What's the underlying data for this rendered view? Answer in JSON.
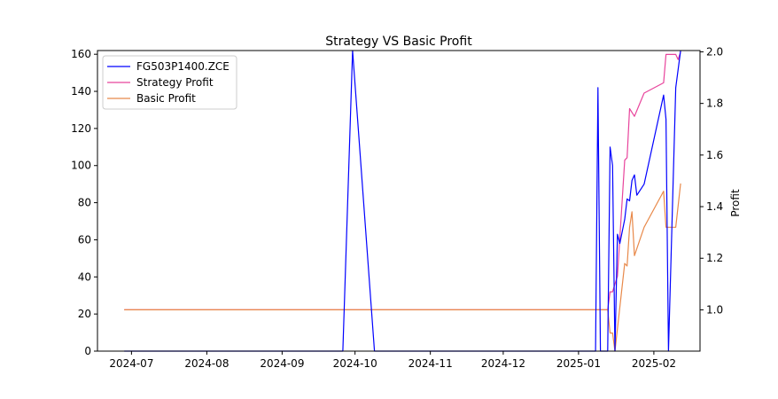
{
  "chart_data": {
    "type": "line",
    "title": "Strategy VS Basic Profit",
    "xlabel": "",
    "ylabel_left": "",
    "ylabel_right": "Profit",
    "x_ticks": [
      "2024-07",
      "2024-08",
      "2024-09",
      "2024-10",
      "2024-11",
      "2024-12",
      "2025-01",
      "2025-02"
    ],
    "y_left_ticks": [
      0,
      20,
      40,
      60,
      80,
      100,
      120,
      140,
      160
    ],
    "y_right_ticks": [
      "1.0",
      "1.2",
      "1.4",
      "1.6",
      "1.8",
      "2.0"
    ],
    "y_left_range": [
      0,
      162
    ],
    "y_right_range": [
      0.84,
      2.005
    ],
    "x_range": [
      "2024-06-17",
      "2025-02-20"
    ],
    "grid": false,
    "legend_position": "upper-left",
    "series": [
      {
        "name": "FG503P1400.ZCE",
        "axis": "left",
        "color": "#0000ff",
        "points": [
          [
            "2024-06-28",
            0
          ],
          [
            "2024-09-26",
            0
          ],
          [
            "2024-09-30",
            162
          ],
          [
            "2024-10-09",
            0
          ],
          [
            "2025-01-08",
            0
          ],
          [
            "2025-01-09",
            142
          ],
          [
            "2025-01-10",
            0
          ],
          [
            "2025-01-13",
            0
          ],
          [
            "2025-01-14",
            110
          ],
          [
            "2025-01-15",
            100
          ],
          [
            "2025-01-16",
            0
          ],
          [
            "2025-01-17",
            63
          ],
          [
            "2025-01-18",
            58
          ],
          [
            "2025-01-20",
            71
          ],
          [
            "2025-01-21",
            82
          ],
          [
            "2025-01-22",
            81
          ],
          [
            "2025-01-23",
            92
          ],
          [
            "2025-01-24",
            95
          ],
          [
            "2025-01-25",
            84
          ],
          [
            "2025-01-28",
            90
          ],
          [
            "2025-02-05",
            138
          ],
          [
            "2025-02-06",
            125
          ],
          [
            "2025-02-07",
            0
          ],
          [
            "2025-02-10",
            142
          ],
          [
            "2025-02-12",
            162
          ]
        ]
      },
      {
        "name": "Strategy Profit",
        "axis": "right",
        "color": "#e8449c",
        "points": [
          [
            "2024-06-28",
            1.0
          ],
          [
            "2025-01-13",
            1.0
          ],
          [
            "2025-01-14",
            1.07
          ],
          [
            "2025-01-15",
            1.07
          ],
          [
            "2025-01-16",
            1.1
          ],
          [
            "2025-01-17",
            1.13
          ],
          [
            "2025-01-20",
            1.58
          ],
          [
            "2025-01-21",
            1.59
          ],
          [
            "2025-01-22",
            1.78
          ],
          [
            "2025-01-24",
            1.75
          ],
          [
            "2025-01-28",
            1.84
          ],
          [
            "2025-02-05",
            1.88
          ],
          [
            "2025-02-06",
            1.99
          ],
          [
            "2025-02-07",
            1.99
          ],
          [
            "2025-02-10",
            1.99
          ],
          [
            "2025-02-11",
            1.97
          ],
          [
            "2025-02-12",
            2.0
          ]
        ]
      },
      {
        "name": "Basic Profit",
        "axis": "right",
        "color": "#e8894a",
        "points": [
          [
            "2024-06-28",
            1.0
          ],
          [
            "2025-01-13",
            1.0
          ],
          [
            "2025-01-14",
            0.91
          ],
          [
            "2025-01-15",
            0.91
          ],
          [
            "2025-01-16",
            0.84
          ],
          [
            "2025-01-20",
            1.18
          ],
          [
            "2025-01-21",
            1.17
          ],
          [
            "2025-01-22",
            1.32
          ],
          [
            "2025-01-23",
            1.38
          ],
          [
            "2025-01-24",
            1.21
          ],
          [
            "2025-01-28",
            1.32
          ],
          [
            "2025-02-05",
            1.46
          ],
          [
            "2025-02-06",
            1.32
          ],
          [
            "2025-02-07",
            1.32
          ],
          [
            "2025-02-10",
            1.32
          ],
          [
            "2025-02-12",
            1.49
          ]
        ]
      }
    ]
  }
}
